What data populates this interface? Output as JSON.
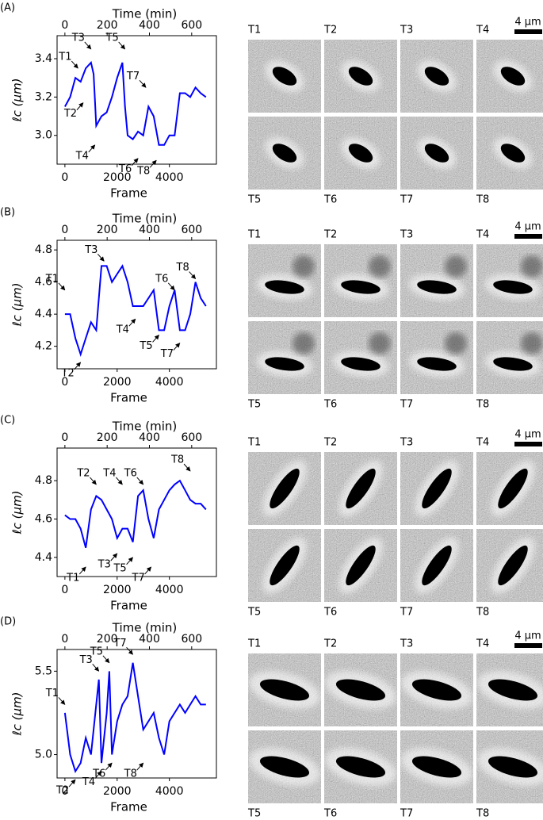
{
  "chart_data": [
    {
      "type": "line",
      "panel": "(A)",
      "x2label": "Time (min)",
      "xlabel": "Frame",
      "ylabel": "ℓc (μm)",
      "xlim": [
        -300,
        5800
      ],
      "xticks": [
        0,
        2000,
        4000
      ],
      "x2lim": [
        -37,
        717
      ],
      "x2ticks": [
        0,
        200,
        400,
        600
      ],
      "ylim": [
        2.85,
        3.52
      ],
      "yticks": [
        {
          "value": 3.0,
          "label": "3.0"
        },
        {
          "value": 3.2,
          "label": "3.2"
        },
        {
          "value": 3.4,
          "label": "3.4"
        }
      ],
      "x": [
        0,
        200,
        400,
        600,
        800,
        1000,
        1100,
        1200,
        1400,
        1600,
        1800,
        2000,
        2200,
        2300,
        2400,
        2600,
        2800,
        3000,
        3200,
        3400,
        3600,
        3800,
        4000,
        4200,
        4400,
        4600,
        4800,
        5000,
        5200,
        5400
      ],
      "series": [
        {
          "color": "#0000ff",
          "values": [
            3.15,
            3.2,
            3.3,
            3.28,
            3.35,
            3.38,
            3.32,
            3.05,
            3.1,
            3.12,
            3.2,
            3.3,
            3.38,
            3.15,
            3.0,
            2.98,
            3.02,
            3.0,
            3.15,
            3.1,
            2.95,
            2.95,
            3.0,
            3.0,
            3.22,
            3.22,
            3.2,
            3.25,
            3.22,
            3.2
          ]
        }
      ],
      "annotations": [
        {
          "label": "T1",
          "x": 500,
          "y": 3.35
        },
        {
          "label": "T2",
          "x": 700,
          "y": 3.17
        },
        {
          "label": "T3",
          "x": 1000,
          "y": 3.45
        },
        {
          "label": "T4",
          "x": 1150,
          "y": 2.95
        },
        {
          "label": "T5",
          "x": 2300,
          "y": 3.45
        },
        {
          "label": "T6",
          "x": 2800,
          "y": 2.88
        },
        {
          "label": "T7",
          "x": 3100,
          "y": 3.25
        },
        {
          "label": "T8",
          "x": 3500,
          "y": 2.87
        }
      ],
      "frames": [
        "T1",
        "T2",
        "T3",
        "T4",
        "T5",
        "T6",
        "T7",
        "T8"
      ],
      "scale_bar": "4 μm"
    },
    {
      "type": "line",
      "panel": "(B)",
      "x2label": "Time (min)",
      "xlabel": "Frame",
      "ylabel": "ℓc (μm)",
      "xlim": [
        -300,
        5800
      ],
      "xticks": [
        0,
        2000,
        4000
      ],
      "x2lim": [
        -37,
        717
      ],
      "x2ticks": [
        0,
        200,
        400,
        600
      ],
      "ylim": [
        4.06,
        4.86
      ],
      "yticks": [
        {
          "value": 4.2,
          "label": "4.2"
        },
        {
          "value": 4.4,
          "label": "4.4"
        },
        {
          "value": 4.6,
          "label": "4.6"
        },
        {
          "value": 4.8,
          "label": "4.8"
        }
      ],
      "x": [
        0,
        200,
        400,
        600,
        800,
        1000,
        1200,
        1400,
        1600,
        1800,
        2000,
        2200,
        2400,
        2600,
        2800,
        3000,
        3200,
        3400,
        3600,
        3800,
        4000,
        4200,
        4400,
        4600,
        4800,
        5000,
        5200,
        5400
      ],
      "series": [
        {
          "color": "#0000ff",
          "values": [
            4.4,
            4.4,
            4.25,
            4.15,
            4.25,
            4.35,
            4.3,
            4.7,
            4.7,
            4.6,
            4.65,
            4.7,
            4.6,
            4.45,
            4.45,
            4.45,
            4.5,
            4.55,
            4.3,
            4.3,
            4.45,
            4.55,
            4.3,
            4.3,
            4.4,
            4.6,
            4.5,
            4.45
          ]
        }
      ],
      "annotations": [
        {
          "label": "T1",
          "x": 0,
          "y": 4.55
        },
        {
          "label": "T2",
          "x": 600,
          "y": 4.1
        },
        {
          "label": "T3",
          "x": 1500,
          "y": 4.73
        },
        {
          "label": "T4",
          "x": 2700,
          "y": 4.37
        },
        {
          "label": "T5",
          "x": 3600,
          "y": 4.27
        },
        {
          "label": "T6",
          "x": 4200,
          "y": 4.55
        },
        {
          "label": "T7",
          "x": 4400,
          "y": 4.22
        },
        {
          "label": "T8",
          "x": 5000,
          "y": 4.62
        }
      ],
      "frames": [
        "T1",
        "T2",
        "T3",
        "T4",
        "T5",
        "T6",
        "T7",
        "T8"
      ],
      "scale_bar": "4 μm"
    },
    {
      "type": "line",
      "panel": "(C)",
      "x2label": "Time (min)",
      "xlabel": "Frame",
      "ylabel": "ℓc (μm)",
      "xlim": [
        -300,
        5800
      ],
      "xticks": [
        0,
        2000,
        4000
      ],
      "x2lim": [
        -37,
        717
      ],
      "x2ticks": [
        0,
        200,
        400,
        600
      ],
      "ylim": [
        4.3,
        4.97
      ],
      "yticks": [
        {
          "value": 4.4,
          "label": "4.4"
        },
        {
          "value": 4.6,
          "label": "4.6"
        },
        {
          "value": 4.8,
          "label": "4.8"
        }
      ],
      "x": [
        0,
        200,
        400,
        600,
        800,
        1000,
        1200,
        1400,
        1600,
        1800,
        2000,
        2200,
        2400,
        2600,
        2800,
        3000,
        3200,
        3400,
        3600,
        3800,
        4000,
        4200,
        4400,
        4600,
        4800,
        5000,
        5200,
        5400
      ],
      "series": [
        {
          "color": "#0000ff",
          "values": [
            4.62,
            4.6,
            4.6,
            4.55,
            4.45,
            4.65,
            4.72,
            4.7,
            4.65,
            4.6,
            4.5,
            4.55,
            4.55,
            4.48,
            4.72,
            4.75,
            4.6,
            4.5,
            4.65,
            4.7,
            4.75,
            4.78,
            4.8,
            4.75,
            4.7,
            4.68,
            4.68,
            4.65
          ]
        }
      ],
      "annotations": [
        {
          "label": "T1",
          "x": 800,
          "y": 4.35
        },
        {
          "label": "T2",
          "x": 1200,
          "y": 4.78
        },
        {
          "label": "T3",
          "x": 2000,
          "y": 4.42
        },
        {
          "label": "T4",
          "x": 2200,
          "y": 4.78
        },
        {
          "label": "T5",
          "x": 2600,
          "y": 4.4
        },
        {
          "label": "T6",
          "x": 3000,
          "y": 4.78
        },
        {
          "label": "T7",
          "x": 3300,
          "y": 4.35
        },
        {
          "label": "T8",
          "x": 4800,
          "y": 4.85
        }
      ],
      "frames": [
        "T1",
        "T2",
        "T3",
        "T4",
        "T5",
        "T6",
        "T7",
        "T8"
      ],
      "scale_bar": "4 μm"
    },
    {
      "type": "line",
      "panel": "(D)",
      "x2label": "Time (min)",
      "xlabel": "Frame",
      "ylabel": "ℓc (μm)",
      "xlim": [
        -300,
        5800
      ],
      "xticks": [
        0,
        2000,
        4000
      ],
      "x2lim": [
        -37,
        717
      ],
      "x2ticks": [
        0,
        200,
        400,
        600
      ],
      "ylim": [
        4.86,
        5.63
      ],
      "yticks": [
        {
          "value": 5.0,
          "label": "5.0"
        },
        {
          "value": 5.5,
          "label": "5.5"
        }
      ],
      "x": [
        0,
        200,
        400,
        600,
        800,
        1000,
        1200,
        1300,
        1400,
        1600,
        1700,
        1800,
        2000,
        2200,
        2400,
        2600,
        2800,
        3000,
        3200,
        3400,
        3600,
        3800,
        4000,
        4200,
        4400,
        4600,
        4800,
        5000,
        5200,
        5400
      ],
      "series": [
        {
          "color": "#0000ff",
          "values": [
            5.25,
            5.0,
            4.9,
            4.95,
            5.1,
            5.0,
            5.3,
            5.45,
            4.95,
            5.25,
            5.5,
            5.0,
            5.2,
            5.3,
            5.35,
            5.55,
            5.35,
            5.15,
            5.2,
            5.25,
            5.1,
            5.0,
            5.2,
            5.25,
            5.3,
            5.25,
            5.3,
            5.35,
            5.3,
            5.3
          ]
        }
      ],
      "annotations": [
        {
          "label": "T1",
          "x": 0,
          "y": 5.3
        },
        {
          "label": "T2",
          "x": 400,
          "y": 4.85
        },
        {
          "label": "T3",
          "x": 1300,
          "y": 5.5
        },
        {
          "label": "T4",
          "x": 1400,
          "y": 4.9
        },
        {
          "label": "T5",
          "x": 1700,
          "y": 5.55
        },
        {
          "label": "T6",
          "x": 1800,
          "y": 4.95
        },
        {
          "label": "T7",
          "x": 2600,
          "y": 5.6
        },
        {
          "label": "T8",
          "x": 3000,
          "y": 4.95
        }
      ],
      "frames": [
        "T1",
        "T2",
        "T3",
        "T4",
        "T5",
        "T6",
        "T7",
        "T8"
      ],
      "scale_bar": "4 μm"
    }
  ]
}
